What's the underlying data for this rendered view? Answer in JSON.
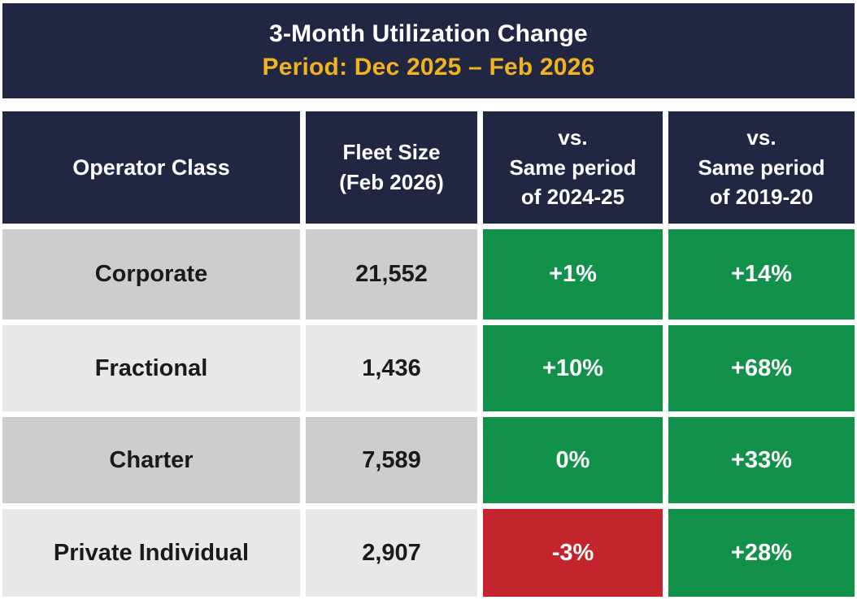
{
  "colors": {
    "navy": "#212642",
    "gold": "#EFB41E",
    "green": "#12914A",
    "red": "#C4242C",
    "gray_dark": "#CDCDCD",
    "gray_light": "#E8E8E8",
    "text_dark": "#1A1A1A",
    "white": "#FFFFFF"
  },
  "title": {
    "line1": "3-Month Utilization Change",
    "line2": "Period: Dec 2025 – Feb 2026"
  },
  "table": {
    "headers": {
      "operator": "Operator Class",
      "fleet": "Fleet Size\n(Feb 2026)",
      "vs2024": "vs.\nSame period\nof 2024-25",
      "vs2019": "vs.\nSame period\nof 2019-20"
    },
    "rows": [
      {
        "operator": "Corporate",
        "fleet": "21,552",
        "vs2024": "+1%",
        "vs2024_color": "green",
        "vs2019": "+14%",
        "vs2019_color": "green"
      },
      {
        "operator": "Fractional",
        "fleet": "1,436",
        "vs2024": "+10%",
        "vs2024_color": "green",
        "vs2019": "+68%",
        "vs2019_color": "green"
      },
      {
        "operator": "Charter",
        "fleet": "7,589",
        "vs2024": "0%",
        "vs2024_color": "green",
        "vs2019": "+33%",
        "vs2019_color": "green"
      },
      {
        "operator": "Private Individual",
        "fleet": "2,907",
        "vs2024": "-3%",
        "vs2024_color": "red",
        "vs2019": "+28%",
        "vs2019_color": "green"
      }
    ]
  },
  "chart_data": {
    "type": "table",
    "title": "3-Month Utilization Change",
    "subtitle": "Period: Dec 2025 – Feb 2026",
    "columns": [
      "Operator Class",
      "Fleet Size (Feb 2026)",
      "vs. Same period of 2024-25",
      "vs. Same period of 2019-20"
    ],
    "rows": [
      [
        "Corporate",
        21552,
        "+1%",
        "+14%"
      ],
      [
        "Fractional",
        1436,
        "+10%",
        "+68%"
      ],
      [
        "Charter",
        7589,
        "0%",
        "+33%"
      ],
      [
        "Private Individual",
        2907,
        "-3%",
        "+28%"
      ]
    ],
    "positive_cell_color": "#12914A",
    "negative_cell_color": "#C4242C"
  }
}
